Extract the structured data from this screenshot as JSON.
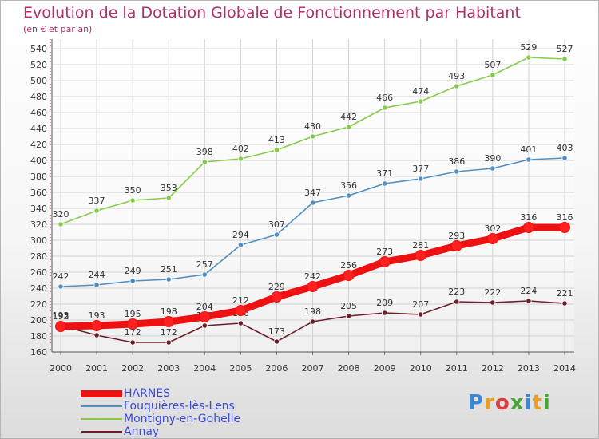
{
  "title": "Evolution de la Dotation Globale de Fonctionnement par Habitant",
  "subtitle": "(en € et par an)",
  "logo": {
    "letters": [
      "P",
      "r",
      "o",
      "x",
      "i",
      "t",
      "i"
    ],
    "colors": [
      "#3a86d8",
      "#e5a025",
      "#d94040",
      "#4aa33a",
      "#3a86d8",
      "#e5a025",
      "#4aa33a"
    ]
  },
  "chart_data": {
    "type": "line",
    "title": "Evolution de la Dotation Globale de Fonctionnement par Habitant",
    "subtitle": "(en € et par an)",
    "x": [
      "2000",
      "2001",
      "2002",
      "2003",
      "2004",
      "2005",
      "2006",
      "2007",
      "2008",
      "2009",
      "2010",
      "2011",
      "2012",
      "2013",
      "2014"
    ],
    "ylim": [
      160,
      540
    ],
    "yticks": [
      160,
      180,
      200,
      220,
      240,
      260,
      280,
      300,
      320,
      340,
      360,
      380,
      400,
      420,
      440,
      460,
      480,
      500,
      520,
      540
    ],
    "grid": true,
    "legend_position": "bottom-left",
    "series": [
      {
        "name": "HARNES",
        "color": "#ee1111",
        "values": [
          192,
          193,
          195,
          198,
          204,
          212,
          229,
          242,
          256,
          273,
          281,
          293,
          302,
          316,
          316
        ]
      },
      {
        "name": "Fouquières-lès-Lens",
        "color": "#4f8fc4",
        "values": [
          242,
          244,
          249,
          251,
          257,
          294,
          307,
          347,
          356,
          371,
          377,
          386,
          390,
          401,
          403
        ]
      },
      {
        "name": "Montigny-en-Gohelle",
        "color": "#86cc4a",
        "values": [
          320,
          337,
          350,
          353,
          398,
          402,
          413,
          430,
          442,
          466,
          474,
          493,
          507,
          529,
          527
        ]
      },
      {
        "name": "Annay",
        "color": "#6e1e28",
        "values": [
          193,
          181,
          172,
          172,
          193,
          196,
          173,
          198,
          205,
          209,
          207,
          223,
          222,
          224,
          221
        ]
      }
    ]
  }
}
